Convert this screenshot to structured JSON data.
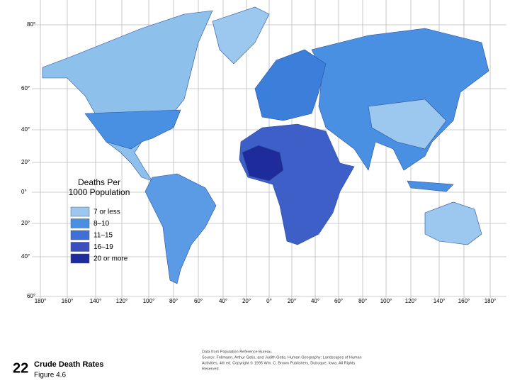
{
  "map": {
    "legend": {
      "title_lines": [
        "Deaths Per",
        "1000 Population"
      ],
      "items": [
        {
          "label": "7 or less",
          "color": "#9cc8ef"
        },
        {
          "label": "8–10",
          "color": "#4a90e2"
        },
        {
          "label": "11–15",
          "color": "#3f70d6"
        },
        {
          "label": "16–19",
          "color": "#3a4fbf"
        },
        {
          "label": "20 or more",
          "color": "#1e2b9a"
        }
      ]
    },
    "latitude_labels": [
      "80°",
      "60°",
      "40°",
      "20°",
      "0°",
      "20°",
      "40°",
      "60°"
    ],
    "longitude_labels": [
      "180°",
      "160°",
      "140°",
      "120°",
      "100°",
      "80°",
      "60°",
      "40°",
      "20°",
      "0°",
      "20°",
      "40°",
      "60°",
      "80°",
      "100°",
      "120°",
      "140°",
      "160°",
      "180°"
    ]
  },
  "footer": {
    "page_number": "22",
    "title": "Crude Death Rates",
    "figure": "Figure 4.6",
    "source_lines": [
      "Data from Population Reference Bureau.",
      "Source: Fellmann, Arthur Getis, and Judith Getis, Human Geography: Landscapes of Human",
      "Activities, 4th ed. Copyright © 1995 Wm. C. Brown Publishers, Dubuque, Iowa. All Rights",
      "Reserved."
    ]
  }
}
